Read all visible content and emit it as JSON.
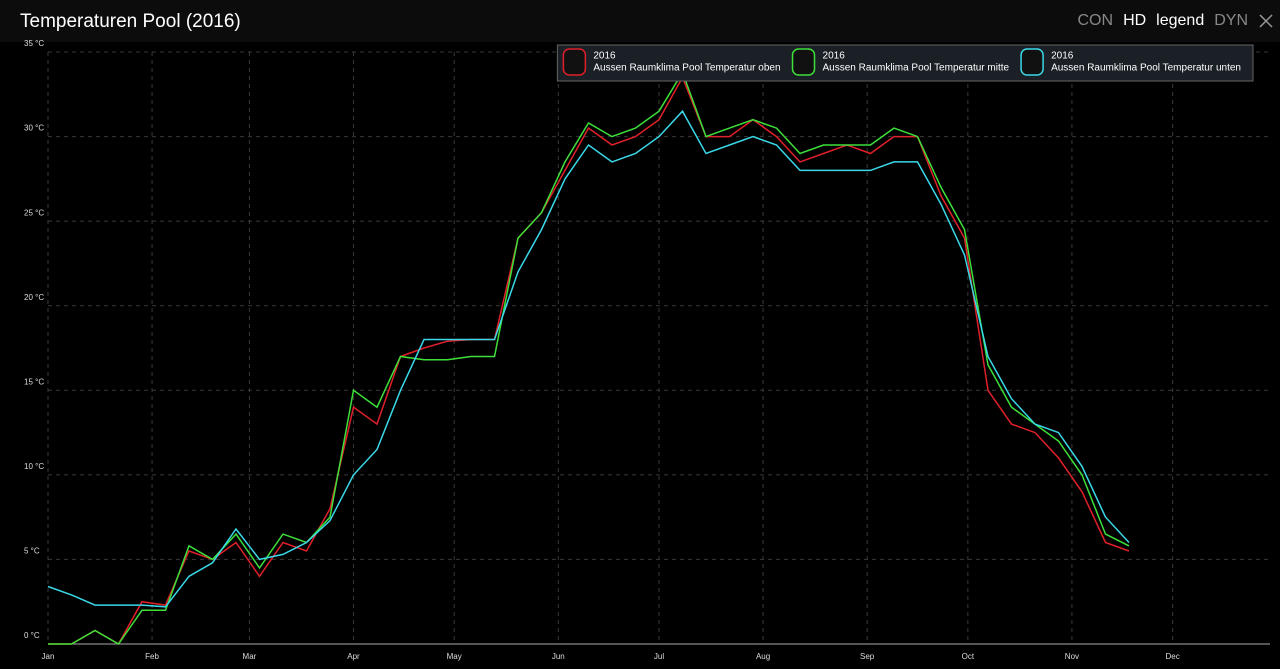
{
  "header": {
    "buttons": [
      "CON",
      "HD",
      "legend",
      "DYN"
    ],
    "active": [
      false,
      true,
      true,
      false
    ]
  },
  "chart_data": {
    "type": "line",
    "title": "Temperaturen Pool (2016)",
    "x": [
      0,
      7,
      14,
      21,
      28,
      35,
      42,
      49,
      56,
      63,
      70,
      77,
      84,
      91,
      98,
      105,
      112,
      119,
      126,
      133,
      140,
      147,
      154,
      161,
      168,
      175,
      182,
      189,
      196,
      203,
      210,
      217,
      224,
      231,
      238,
      245,
      252,
      259,
      266,
      273,
      280,
      287,
      294,
      301,
      308,
      315,
      322
    ],
    "xlim": [
      0,
      364
    ],
    "xticks": [
      {
        "value": 0,
        "label": "Jan"
      },
      {
        "value": 31,
        "label": "Feb"
      },
      {
        "value": 60,
        "label": "Mar"
      },
      {
        "value": 91,
        "label": "Apr"
      },
      {
        "value": 121,
        "label": "May"
      },
      {
        "value": 152,
        "label": "Jun"
      },
      {
        "value": 182,
        "label": "Jul"
      },
      {
        "value": 213,
        "label": "Aug"
      },
      {
        "value": 244,
        "label": "Sep"
      },
      {
        "value": 274,
        "label": "Oct"
      },
      {
        "value": 305,
        "label": "Nov"
      },
      {
        "value": 335,
        "label": "Dec"
      }
    ],
    "ylim": [
      0,
      35
    ],
    "yticks": [
      {
        "value": 0,
        "label": "0 °C"
      },
      {
        "value": 5,
        "label": "5 °C"
      },
      {
        "value": 10,
        "label": "10 °C"
      },
      {
        "value": 15,
        "label": "15 °C"
      },
      {
        "value": 20,
        "label": "20 °C"
      },
      {
        "value": 25,
        "label": "25 °C"
      },
      {
        "value": 30,
        "label": "30 °C"
      },
      {
        "value": 35,
        "label": "35 °C"
      }
    ],
    "grid": true,
    "legend": "top-right",
    "series": [
      {
        "period": "2016",
        "name": "Aussen Raumklima Pool Temperatur oben",
        "color": "#e0202a",
        "values": [
          0,
          0,
          0.8,
          0,
          2.5,
          2.3,
          5.5,
          5,
          6,
          4,
          6,
          5.5,
          8,
          14,
          13,
          17,
          17.5,
          17.9,
          18,
          18,
          24,
          25.5,
          28,
          30.5,
          29.5,
          30,
          31,
          33.5,
          30,
          30,
          31,
          30,
          28.5,
          29,
          29.5,
          29,
          30,
          30,
          26.5,
          24,
          15,
          13,
          12.5,
          11,
          9,
          6,
          5.5
        ]
      },
      {
        "period": "2016",
        "name": "Aussen Raumklima Pool Temperatur mitte",
        "color": "#3ee03a",
        "values": [
          0,
          0,
          0.8,
          0,
          2,
          2,
          5.8,
          5,
          6.5,
          4.5,
          6.5,
          6,
          7.5,
          15,
          14,
          17,
          16.8,
          16.8,
          17,
          17,
          24,
          25.5,
          28.5,
          30.8,
          30,
          30.5,
          31.5,
          33.8,
          30,
          30.5,
          31,
          30.5,
          29,
          29.5,
          29.5,
          29.5,
          30.5,
          30,
          27,
          24.5,
          16.5,
          14,
          13,
          12,
          10,
          6.5,
          5.8
        ]
      },
      {
        "period": "2016",
        "name": "Aussen Raumklima Pool Temperatur unten",
        "color": "#3ad8e8",
        "values": [
          3.4,
          2.9,
          2.3,
          2.3,
          2.3,
          2.2,
          4,
          4.8,
          6.8,
          5,
          5.3,
          6,
          7.3,
          10,
          11.5,
          15,
          18,
          18,
          18,
          18,
          22,
          24.5,
          27.5,
          29.5,
          28.5,
          29,
          30,
          31.5,
          29,
          29.5,
          30,
          29.5,
          28,
          28,
          28,
          28,
          28.5,
          28.5,
          26,
          23,
          17,
          14.5,
          13,
          12.5,
          10.5,
          7.5,
          6
        ]
      }
    ]
  }
}
